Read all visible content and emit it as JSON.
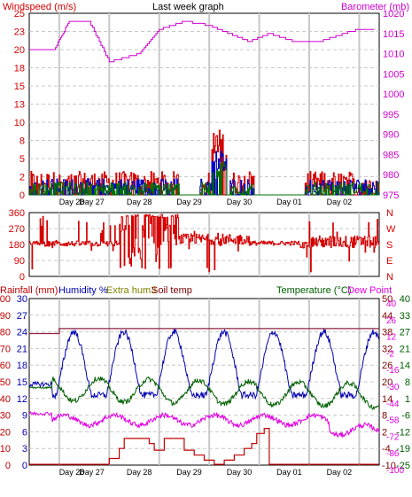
{
  "colors": {
    "wind": "#d40000",
    "gust": "#0000c8",
    "wind_dir_line": "#007000",
    "barometer": "#d000d0",
    "direction": "#d40000",
    "rainfall": "#c00000",
    "humidity": "#0000b0",
    "extra_hum": "#808000",
    "soil_temp": "#800000",
    "temperature": "#006000",
    "dew_point": "#e000e0",
    "rain_acc": "#902040",
    "grid": "#c8c8c8",
    "frame": "#000000"
  },
  "day_labels": [
    "Day 28",
    "Day 27",
    "Day 28",
    "Day 29",
    "Day 30",
    "Day 01",
    "Day 02"
  ],
  "chart_data": [
    {
      "type": "line",
      "title": "Last week graph",
      "left_axis": {
        "label": "Windspeed (m/s)",
        "ticks": [
          0,
          2,
          5,
          8,
          10,
          13,
          15,
          18,
          20,
          23,
          25
        ],
        "range": [
          0,
          25
        ]
      },
      "right_axis": {
        "label": "Barometer (mb)",
        "ticks": [
          975,
          980,
          985,
          990,
          995,
          1000,
          1005,
          1010,
          1015,
          1020
        ],
        "range": [
          975,
          1020
        ]
      },
      "x_ticks": [
        "Day 28",
        "Day 27",
        "Day 28",
        "Day 29",
        "Day 30",
        "Day 01",
        "Day 02"
      ],
      "series": [
        {
          "name": "Windspeed",
          "axis": "left",
          "approx_range": [
            0,
            7
          ]
        },
        {
          "name": "Barometer",
          "axis": "right",
          "x": [
            0,
            0.5,
            0.8,
            1.2,
            1.6,
            2.2,
            2.6,
            3.1,
            3.6,
            4.0,
            4.4,
            4.8,
            5.3,
            5.8,
            6.3,
            6.6,
            6.9
          ],
          "values": [
            1011,
            1011,
            1018,
            1018,
            1008,
            1010,
            1016,
            1018,
            1017,
            1015,
            1013,
            1015,
            1013,
            1013,
            1015,
            1016,
            1016
          ]
        }
      ],
      "grid": true
    },
    {
      "type": "line",
      "left_axis": {
        "ticks": [
          0,
          90,
          180,
          270,
          360
        ],
        "range": [
          0,
          360
        ]
      },
      "right_axis": {
        "ticks": [
          "N",
          "W",
          "S",
          "E",
          "N"
        ]
      },
      "series": [
        {
          "name": "Wind direction",
          "approx_range": [
            10,
            350
          ]
        }
      ],
      "grid": true
    },
    {
      "type": "line",
      "axes": {
        "rainfall": {
          "label": "Rainfall (mm)",
          "ticks": [
            0,
            10,
            20,
            30,
            40,
            50,
            60,
            70,
            80,
            90,
            100
          ],
          "range": [
            0,
            100
          ]
        },
        "humidity": {
          "label": "Humidity %",
          "ticks": [
            0,
            3,
            6,
            9,
            12,
            15,
            18,
            21,
            24,
            27,
            30
          ],
          "range": [
            0,
            30
          ]
        },
        "extra_hum": {
          "label": "Extra hum3"
        },
        "soil_temp": {
          "label": "Soil temp",
          "ticks": [
            -10,
            -4,
            2,
            8,
            14,
            20,
            26,
            32,
            38,
            44,
            50
          ]
        },
        "temperature": {
          "label": "Temperature (°C)",
          "ticks": [
            -25,
            -19,
            -12,
            -6,
            1,
            8,
            14,
            21,
            27,
            33,
            40
          ]
        },
        "dew_point": {
          "label": "Dew Point",
          "ticks": [
            -100,
            -86,
            -72,
            -58,
            -44,
            -30,
            -16,
            -2,
            12,
            26,
            40
          ]
        }
      },
      "series": [
        {
          "name": "Humidity",
          "approx_range": [
            40,
            85
          ]
        },
        {
          "name": "Temperature",
          "approx_range": [
            8,
            22
          ]
        },
        {
          "name": "Dew Point",
          "approx_range": [
            -62,
            -42
          ]
        },
        {
          "name": "Rainfall",
          "approx_range": [
            0,
            20
          ]
        },
        {
          "name": "Soil temp",
          "approx_range": [
            21,
            25
          ]
        }
      ],
      "grid": true
    }
  ]
}
